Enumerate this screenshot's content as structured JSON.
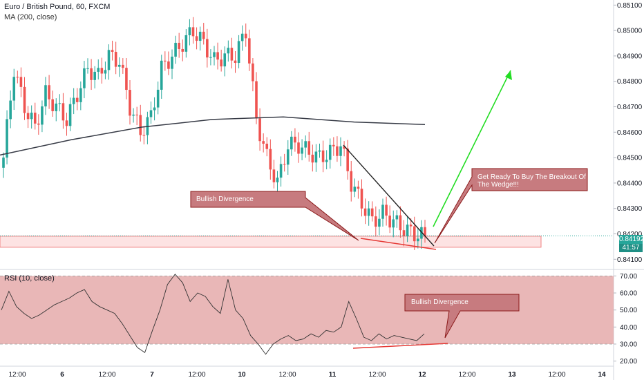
{
  "legend": {
    "symbol": "Euro / British Pound, 60, FXCM",
    "ma": "MA (200, close)",
    "rsi": "RSI (10, close)"
  },
  "price_tag": {
    "value": "0.84192",
    "countdown": "41:57"
  },
  "annotations": {
    "divergence_price": "Bullish Divergence",
    "breakout": "Get Ready To Buy The Breakout Of The Wedge!!!",
    "divergence_rsi": "Bullish Divergence"
  },
  "colors": {
    "up": "#26a69a",
    "down": "#ef5350",
    "ma": "#363a45",
    "callout_fill": "#c77b7f",
    "callout_border": "#8b1a1a",
    "rsi_band": "#e3a5a5",
    "support_zone": "#fde3e3",
    "arrow": "#22dd22",
    "wedge_upper": "#222222",
    "wedge_lower": "#e53935",
    "price_line": "#26a69a"
  },
  "chart_data": [
    {
      "type": "candlestick",
      "title": "Euro / British Pound, 60, FXCM",
      "y_axis": {
        "ticks": [
          "0.85100",
          "0.85000",
          "0.84900",
          "0.84800",
          "0.84700",
          "0.84600",
          "0.84500",
          "0.84400",
          "0.84300",
          "0.84200",
          "0.84100"
        ],
        "range": [
          0.8406,
          0.8512
        ]
      },
      "x_axis": {
        "ticks": [
          "12:00",
          "6",
          "12:00",
          "7",
          "12:00",
          "10",
          "12:00",
          "11",
          "12:00",
          "12",
          "12:00",
          "13",
          "12:00",
          "14"
        ]
      },
      "last_price": 0.84192,
      "ohlc_sample_closes": [
        0.845,
        0.8485,
        0.847,
        0.8462,
        0.8475,
        0.847,
        0.8465,
        0.8475,
        0.8485,
        0.8482,
        0.849,
        0.8488,
        0.847,
        0.846,
        0.8466,
        0.8485,
        0.849,
        0.8495,
        0.85,
        0.8495,
        0.8488,
        0.849,
        0.849,
        0.85,
        0.8465,
        0.845,
        0.844,
        0.8455,
        0.8455,
        0.8452,
        0.845,
        0.8452,
        0.8455,
        0.844,
        0.8432,
        0.8425,
        0.8428,
        0.8425,
        0.8422,
        0.842,
        0.8419
      ],
      "series": [
        {
          "name": "MA (200, close)",
          "x_range": "start to 12 (12:00)",
          "values_approx": [
            0.8451,
            0.8457,
            0.8462,
            0.8465,
            0.8466,
            0.8464,
            0.8463
          ]
        }
      ],
      "zones": [
        {
          "label": "support",
          "y_range": [
            0.8416,
            0.8418
          ]
        }
      ],
      "wedge": {
        "upper": [
          [
            0.8458
          ],
          [
            0.8419
          ]
        ],
        "lower": [
          [
            0.842
          ],
          [
            0.8416
          ]
        ]
      }
    },
    {
      "type": "line",
      "title": "RSI (10, close)",
      "y_axis": {
        "ticks": [
          "70.00",
          "60.00",
          "50.00",
          "40.00",
          "30.00",
          "20.00"
        ],
        "range": [
          17,
          73
        ]
      },
      "band": [
        30,
        70
      ],
      "values_approx": [
        50,
        61,
        52,
        48,
        45,
        47,
        50,
        53,
        55,
        57,
        60,
        62,
        55,
        52,
        50,
        48,
        42,
        35,
        28,
        25,
        38,
        50,
        65,
        71,
        66,
        55,
        60,
        58,
        52,
        48,
        68,
        50,
        45,
        35,
        30,
        24,
        30,
        33,
        35,
        32,
        33,
        36,
        34,
        38,
        37,
        40,
        55,
        45,
        34,
        32,
        36,
        33,
        35,
        34,
        33,
        32,
        36
      ]
    }
  ]
}
